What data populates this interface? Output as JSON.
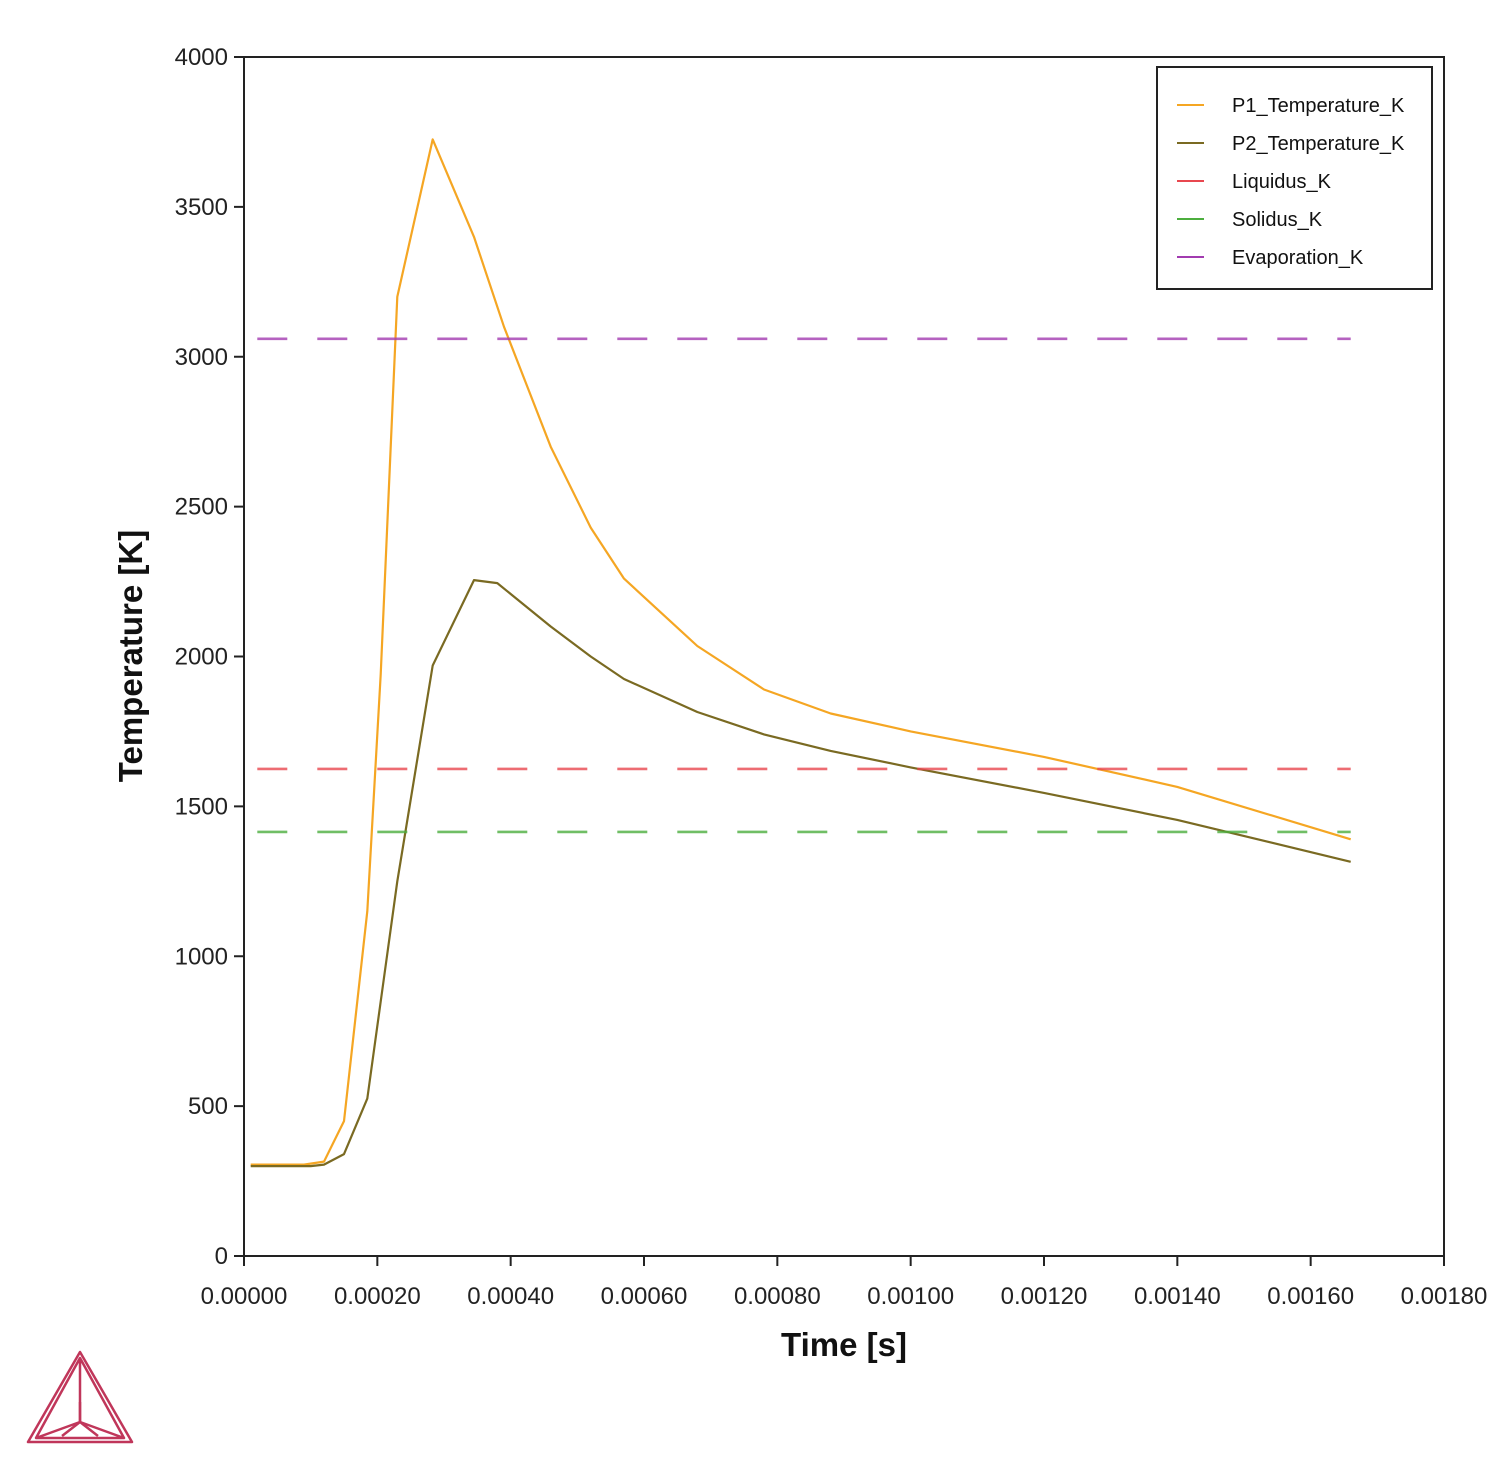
{
  "chart_data": {
    "type": "line",
    "xlabel": "Time [s]",
    "ylabel": "Temperature [K]",
    "xlim": [
      0,
      0.0018
    ],
    "ylim": [
      0,
      4000
    ],
    "x_ticks": [
      "0.00000",
      "0.00020",
      "0.00040",
      "0.00060",
      "0.00080",
      "0.00100",
      "0.00120",
      "0.00140",
      "0.00160",
      "0.00180"
    ],
    "y_ticks": [
      "0",
      "500",
      "1000",
      "1500",
      "2000",
      "2500",
      "3000",
      "3500",
      "4000"
    ],
    "grid": false,
    "legend_position": "top-right",
    "series": [
      {
        "name": "P1_Temperature_K",
        "color": "#f5a623",
        "style": "solid",
        "x": [
          1e-05,
          9e-05,
          0.00012,
          0.00015,
          0.000185,
          0.000205,
          0.00023,
          0.000283,
          0.000345,
          0.00039,
          0.00046,
          0.00052,
          0.00057,
          0.00068,
          0.00078,
          0.00088,
          0.001,
          0.0012,
          0.0014,
          0.00166
        ],
        "y": [
          305,
          305,
          315,
          450,
          1150,
          1940,
          3200,
          3725,
          3400,
          3100,
          2700,
          2430,
          2260,
          2035,
          1890,
          1810,
          1750,
          1665,
          1565,
          1390
        ]
      },
      {
        "name": "P2_Temperature_K",
        "color": "#7a6a22",
        "style": "solid",
        "x": [
          1e-05,
          0.0001,
          0.00012,
          0.00015,
          0.000185,
          0.00023,
          0.000283,
          0.000345,
          0.00038,
          0.00046,
          0.00052,
          0.00057,
          0.00068,
          0.00078,
          0.00088,
          0.001,
          0.0012,
          0.0014,
          0.00166
        ],
        "y": [
          300,
          300,
          305,
          340,
          525,
          1250,
          1970,
          2255,
          2245,
          2100,
          2000,
          1925,
          1815,
          1740,
          1685,
          1630,
          1545,
          1455,
          1315
        ]
      },
      {
        "name": "Liquidus_K",
        "color": "#e8474f",
        "style": "dashed",
        "x": [
          2e-05,
          0.00166
        ],
        "y": [
          1625,
          1625
        ]
      },
      {
        "name": "Solidus_K",
        "color": "#4cae3e",
        "style": "dashed",
        "x": [
          2e-05,
          0.00166
        ],
        "y": [
          1415,
          1415
        ]
      },
      {
        "name": "Evaporation_K",
        "color": "#a23bb0",
        "style": "dashed",
        "x": [
          2e-05,
          0.00166
        ],
        "y": [
          3060,
          3060
        ]
      }
    ]
  },
  "logo": {
    "stroke_color": "#c0365a"
  }
}
